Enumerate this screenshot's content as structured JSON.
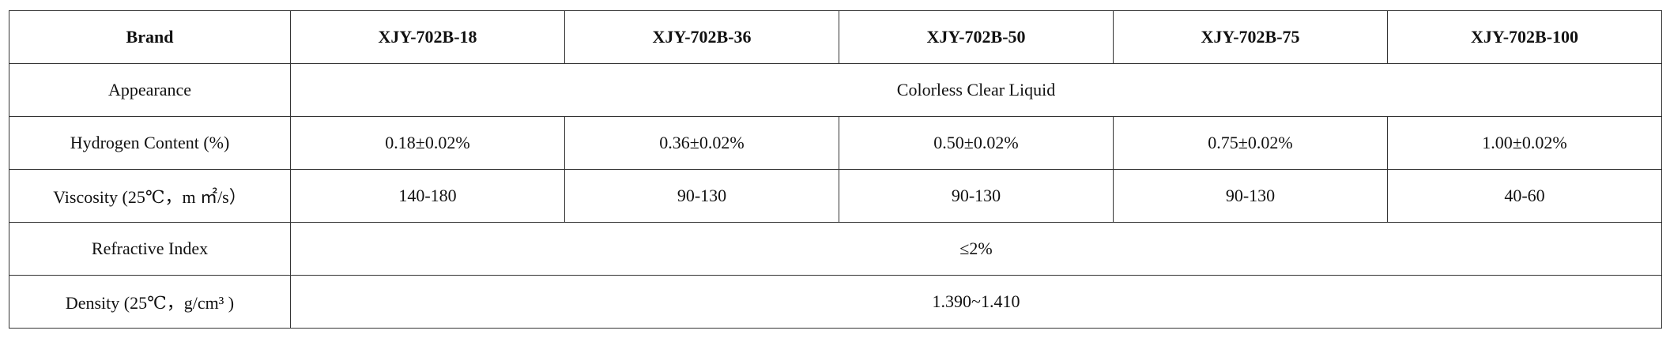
{
  "table": {
    "header": [
      "Brand",
      "XJY-702B-18",
      "XJY-702B-36",
      "XJY-702B-50",
      "XJY-702B-75",
      "XJY-702B-100"
    ],
    "rows": [
      [
        "Appearance",
        "Colorless Clear Liquid"
      ],
      [
        "Hydrogen Content (%)",
        "0.18±0.02%",
        "0.36±0.02%",
        "0.50±0.02%",
        "0.75±0.02%",
        "1.00±0.02%"
      ],
      [
        "Viscosity (25℃，m ㎡/s）",
        "140-180",
        "90-130",
        "90-130",
        "90-130",
        "40-60"
      ],
      [
        "Refractive Index",
        "≤2%"
      ],
      [
        "Density (25℃，g/cm³ )",
        "1.390~1.410"
      ]
    ]
  }
}
